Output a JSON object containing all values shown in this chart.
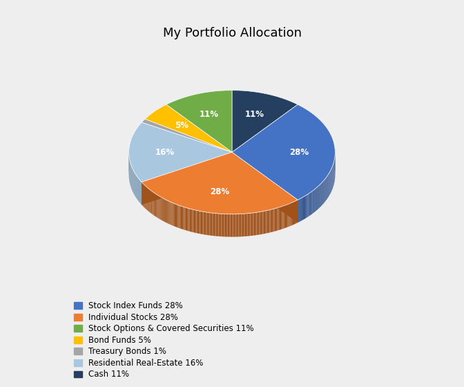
{
  "title": "My Portfolio Allocation",
  "labels": [
    "Stock Index Funds 28%",
    "Individual Stocks 28%",
    "Stock Options & Covered Securities 11%",
    "Bond Funds 5%",
    "Treasury Bonds 1%",
    "Residential Real-Estate 16%",
    "Cash 11%"
  ],
  "values": [
    28,
    28,
    11,
    5,
    1,
    16,
    11
  ],
  "colors": [
    "#4472C4",
    "#ED7D31",
    "#70AD47",
    "#FFC000",
    "#A5A5A5",
    "#A9C8E0",
    "#243F60"
  ],
  "dark_colors": [
    "#2A4E8C",
    "#A0521A",
    "#4A7530",
    "#A07800",
    "#6E6E6E",
    "#6A8EAA",
    "#101E30"
  ],
  "startangle": 90,
  "background_color": "#EEEEEE",
  "title_fontsize": 13,
  "legend_fontsize": 8.5,
  "pct_labels": [
    "28%",
    "28%",
    "11%",
    "5%",
    "1%",
    "16%",
    "11%"
  ]
}
